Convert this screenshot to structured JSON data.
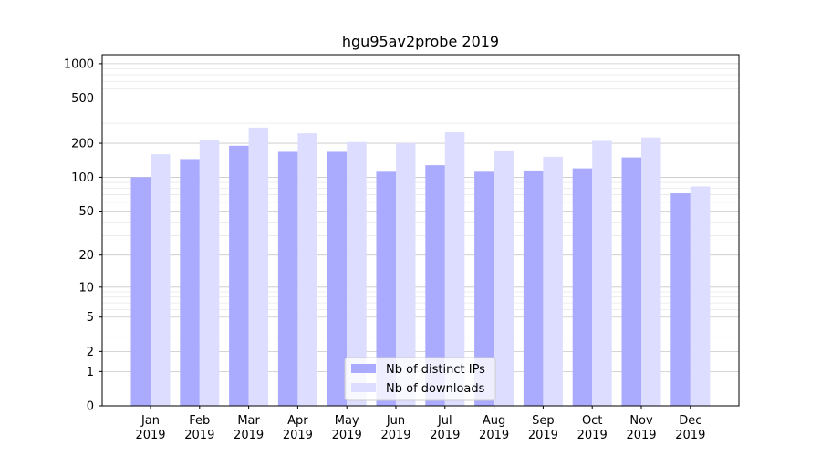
{
  "chart_data": {
    "type": "bar",
    "title": "hgu95av2probe 2019",
    "xlabel": "",
    "ylabel": "",
    "yscale": "log(1+y)",
    "ylim": [
      0,
      1200
    ],
    "yticks": [
      0,
      1,
      2,
      5,
      10,
      20,
      50,
      100,
      200,
      500,
      1000
    ],
    "categories": [
      "Jan\n2019",
      "Feb\n2019",
      "Mar\n2019",
      "Apr\n2019",
      "May\n2019",
      "Jun\n2019",
      "Jul\n2019",
      "Aug\n2019",
      "Sep\n2019",
      "Oct\n2019",
      "Nov\n2019",
      "Dec\n2019"
    ],
    "series": [
      {
        "name": "Nb of distinct IPs",
        "color": "#aaaaff",
        "values": [
          100,
          145,
          190,
          168,
          168,
          112,
          128,
          112,
          115,
          120,
          150,
          72
        ]
      },
      {
        "name": "Nb of downloads",
        "color": "#ddddff",
        "values": [
          160,
          215,
          275,
          245,
          205,
          200,
          250,
          170,
          152,
          210,
          225,
          83
        ]
      }
    ],
    "grid": true,
    "legend_position": "bottom-center"
  }
}
